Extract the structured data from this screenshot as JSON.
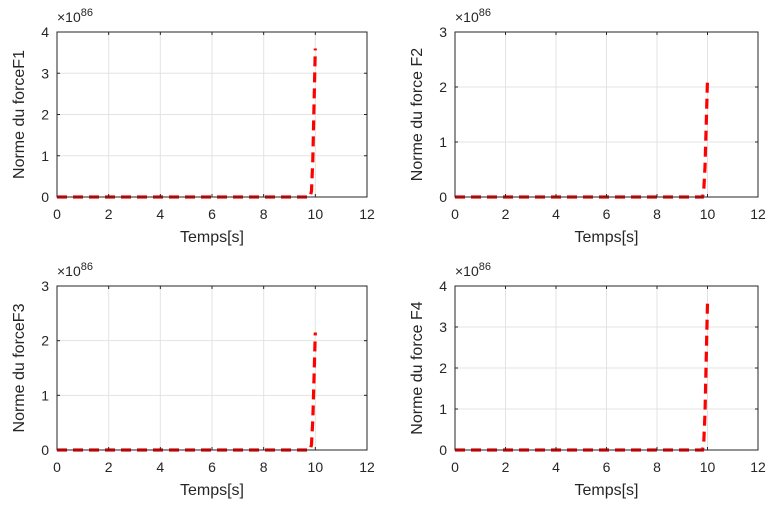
{
  "chart_data": [
    {
      "type": "line",
      "xlabel": "Temps[s]",
      "ylabel": "Norme du forceF1",
      "exponent_base": "×10",
      "exponent_power": "86",
      "xlim": [
        0,
        12
      ],
      "ylim": [
        0,
        4
      ],
      "xticks": [
        "0",
        "2",
        "4",
        "6",
        "8",
        "10",
        "12"
      ],
      "yticks": [
        "0",
        "1",
        "2",
        "3",
        "4"
      ],
      "grid": true,
      "series": [
        {
          "color": "#ff0000",
          "style": "dashed",
          "x": [
            0,
            9.8,
            9.85,
            9.9,
            9.95,
            10.0
          ],
          "y": [
            0,
            0,
            0.15,
            0.9,
            2.2,
            3.6
          ]
        }
      ]
    },
    {
      "type": "line",
      "xlabel": "Temps[s]",
      "ylabel": "Norme du force F2",
      "exponent_base": "×10",
      "exponent_power": "86",
      "xlim": [
        0,
        12
      ],
      "ylim": [
        0,
        3
      ],
      "xticks": [
        "0",
        "2",
        "4",
        "6",
        "8",
        "10",
        "12"
      ],
      "yticks": [
        "0",
        "1",
        "2",
        "3"
      ],
      "grid": true,
      "series": [
        {
          "color": "#ff0000",
          "style": "dashed",
          "x": [
            0,
            9.8,
            9.85,
            9.9,
            9.95,
            10.0
          ],
          "y": [
            0,
            0,
            0.1,
            0.55,
            1.3,
            2.15
          ]
        }
      ]
    },
    {
      "type": "line",
      "xlabel": "Temps[s]",
      "ylabel": "Norme du forceF3",
      "exponent_base": "×10",
      "exponent_power": "86",
      "xlim": [
        0,
        12
      ],
      "ylim": [
        0,
        3
      ],
      "xticks": [
        "0",
        "2",
        "4",
        "6",
        "8",
        "10",
        "12"
      ],
      "yticks": [
        "0",
        "1",
        "2",
        "3"
      ],
      "grid": true,
      "series": [
        {
          "color": "#ff0000",
          "style": "dashed",
          "x": [
            0,
            9.8,
            9.85,
            9.9,
            9.95,
            10.0
          ],
          "y": [
            0,
            0,
            0.1,
            0.55,
            1.3,
            2.15
          ]
        }
      ]
    },
    {
      "type": "line",
      "xlabel": "Temps[s]",
      "ylabel": "Norme du force F4",
      "exponent_base": "×10",
      "exponent_power": "86",
      "xlim": [
        0,
        12
      ],
      "ylim": [
        0,
        4
      ],
      "xticks": [
        "0",
        "2",
        "4",
        "6",
        "8",
        "10",
        "12"
      ],
      "yticks": [
        "0",
        "1",
        "2",
        "3",
        "4"
      ],
      "grid": true,
      "series": [
        {
          "color": "#ff0000",
          "style": "dashed",
          "x": [
            0,
            9.8,
            9.85,
            9.9,
            9.95,
            10.0
          ],
          "y": [
            0,
            0,
            0.15,
            0.9,
            2.2,
            3.6
          ]
        }
      ]
    }
  ]
}
